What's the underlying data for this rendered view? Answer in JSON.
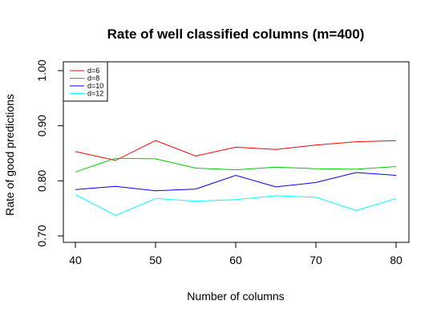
{
  "chart_data": {
    "type": "line",
    "title": "Rate of well classified columns (m=400)",
    "xlabel": "Number of columns",
    "ylabel": "Rate of good predictions",
    "x": [
      40,
      45,
      50,
      55,
      60,
      65,
      70,
      75,
      80
    ],
    "xlim": [
      40,
      80
    ],
    "ylim": [
      0.7,
      1.0
    ],
    "xticks": [
      40,
      50,
      60,
      70,
      80
    ],
    "yticks": [
      0.7,
      0.8,
      0.9,
      1.0
    ],
    "xtick_labels": [
      "40",
      "50",
      "60",
      "70",
      "80"
    ],
    "ytick_labels": [
      "0.70",
      "0.80",
      "0.90",
      "1.00"
    ],
    "grid": false,
    "legend_position": "top-left",
    "series": [
      {
        "name": "d=6",
        "color": "#ff0000",
        "values": [
          0.853,
          0.837,
          0.873,
          0.845,
          0.861,
          0.857,
          0.865,
          0.871,
          0.873
        ]
      },
      {
        "name": "d=8",
        "color": "#00cd00",
        "values": [
          0.816,
          0.841,
          0.84,
          0.823,
          0.82,
          0.825,
          0.822,
          0.821,
          0.826
        ]
      },
      {
        "name": "d=10",
        "color": "#0000ff",
        "values": [
          0.784,
          0.79,
          0.782,
          0.785,
          0.81,
          0.789,
          0.797,
          0.815,
          0.81
        ]
      },
      {
        "name": "d=12",
        "color": "#00ffff",
        "values": [
          0.775,
          0.737,
          0.768,
          0.763,
          0.766,
          0.773,
          0.77,
          0.746,
          0.768
        ]
      }
    ]
  }
}
